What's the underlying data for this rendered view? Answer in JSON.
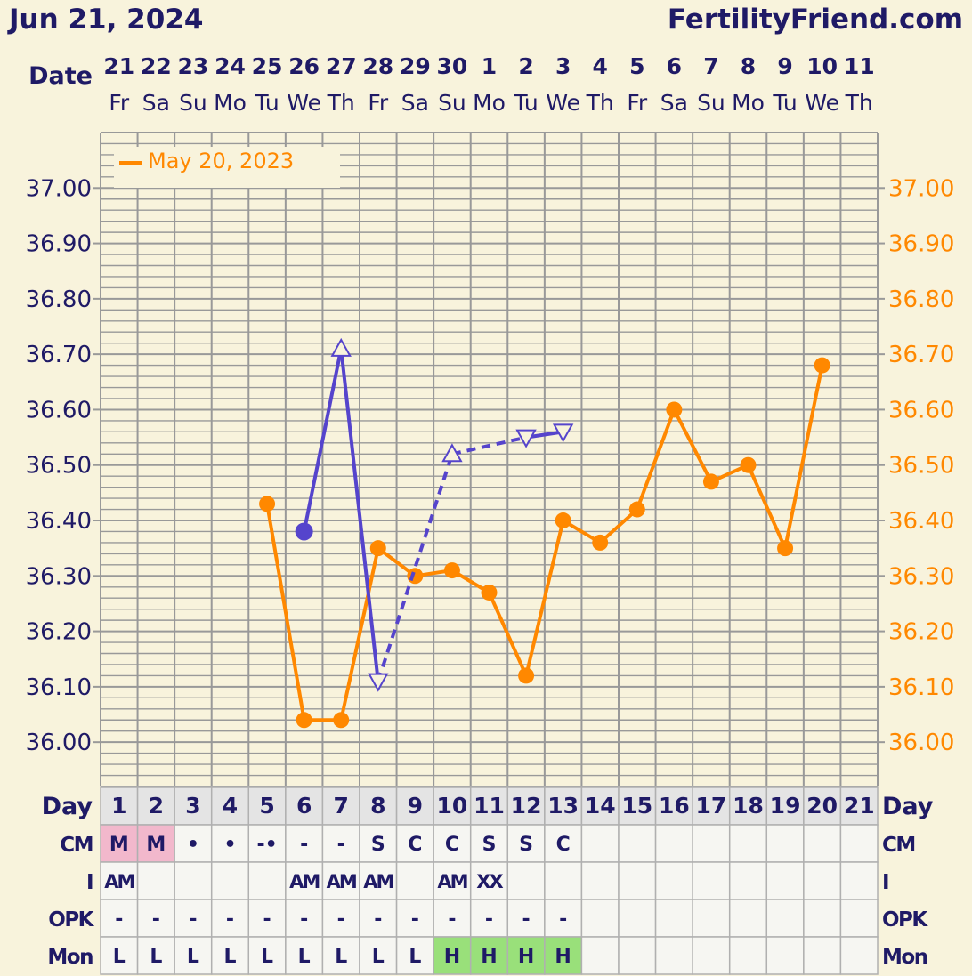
{
  "header": {
    "date": "Jun 21, 2024",
    "site": "FertilityFriend.com"
  },
  "date_label": "Date",
  "dates": [
    "21",
    "22",
    "23",
    "24",
    "25",
    "26",
    "27",
    "28",
    "29",
    "30",
    "1",
    "2",
    "3",
    "4",
    "5",
    "6",
    "7",
    "8",
    "9",
    "10",
    "11"
  ],
  "weekdays": [
    "Fr",
    "Sa",
    "Su",
    "Mo",
    "Tu",
    "We",
    "Th",
    "Fr",
    "Sa",
    "Su",
    "Mo",
    "Tu",
    "We",
    "Th",
    "Fr",
    "Sa",
    "Su",
    "Mo",
    "Tu",
    "We",
    "Th"
  ],
  "colors": {
    "current": "#5544cc",
    "overlay": "#ff8800",
    "text": "#1f1a66",
    "grid": "#999999",
    "pink": "#f2b8cc",
    "green": "#99e07a"
  },
  "chart_data": {
    "type": "line",
    "ylim": [
      35.92,
      37.1
    ],
    "y_ticks": [
      "37.00",
      "36.90",
      "36.80",
      "36.70",
      "36.60",
      "36.50",
      "36.40",
      "36.30",
      "36.20",
      "36.10",
      "36.00"
    ],
    "y_tick_values": [
      37.0,
      36.9,
      36.8,
      36.7,
      36.6,
      36.5,
      36.4,
      36.3,
      36.2,
      36.1,
      36.0
    ],
    "x_days": [
      1,
      2,
      3,
      4,
      5,
      6,
      7,
      8,
      9,
      10,
      11,
      12,
      13,
      14,
      15,
      16,
      17,
      18,
      19,
      20,
      21
    ],
    "legend": {
      "label": "May 20, 2023",
      "placement": "top-left"
    },
    "series": [
      {
        "name": "",
        "role": "current",
        "color": "#5544cc",
        "points": [
          {
            "day": 6,
            "temp": 36.38,
            "marker": "dot"
          },
          {
            "day": 7,
            "temp": 36.71,
            "marker": "triangle-up"
          },
          {
            "day": 8,
            "temp": 36.11,
            "marker": "triangle-down"
          },
          {
            "day": 10,
            "temp": 36.52,
            "marker": "triangle-up"
          },
          {
            "day": 12,
            "temp": 36.55,
            "marker": "triangle-down"
          },
          {
            "day": 13,
            "temp": 36.56,
            "marker": "triangle-down"
          }
        ],
        "segments": [
          {
            "from": 6,
            "to": 7,
            "style": "solid"
          },
          {
            "from": 7,
            "to": 8,
            "style": "solid"
          },
          {
            "from": 8,
            "to": 10,
            "style": "dashed"
          },
          {
            "from": 10,
            "to": 12,
            "style": "dashed"
          },
          {
            "from": 12,
            "to": 13,
            "style": "solid"
          }
        ]
      },
      {
        "name": "May 20, 2023",
        "role": "overlay",
        "color": "#ff8800",
        "points": [
          {
            "day": 5,
            "temp": 36.43
          },
          {
            "day": 6,
            "temp": 36.04
          },
          {
            "day": 7,
            "temp": 36.04
          },
          {
            "day": 8,
            "temp": 36.35
          },
          {
            "day": 9,
            "temp": 36.3
          },
          {
            "day": 10,
            "temp": 36.31
          },
          {
            "day": 11,
            "temp": 36.27
          },
          {
            "day": 12,
            "temp": 36.12
          },
          {
            "day": 13,
            "temp": 36.4
          },
          {
            "day": 14,
            "temp": 36.36
          },
          {
            "day": 15,
            "temp": 36.42
          },
          {
            "day": 16,
            "temp": 36.6
          },
          {
            "day": 17,
            "temp": 36.47
          },
          {
            "day": 18,
            "temp": 36.5
          },
          {
            "day": 19,
            "temp": 36.35
          },
          {
            "day": 20,
            "temp": 36.68
          }
        ]
      }
    ]
  },
  "table": {
    "rows": [
      {
        "label": "Day",
        "right_label": "Day",
        "kind": "day",
        "cells": [
          "1",
          "2",
          "3",
          "4",
          "5",
          "6",
          "7",
          "8",
          "9",
          "10",
          "11",
          "12",
          "13",
          "14",
          "15",
          "16",
          "17",
          "18",
          "19",
          "20",
          "21"
        ],
        "fills": []
      },
      {
        "label": "CM",
        "right_label": "CM",
        "kind": "cm",
        "cells": [
          "M",
          "M",
          "•",
          "•",
          "-•",
          "-",
          "-",
          "S",
          "C",
          "C",
          "S",
          "S",
          "C",
          "",
          "",
          "",
          "",
          "",
          "",
          "",
          ""
        ],
        "fills": [
          "pink",
          "pink",
          "",
          "",
          "",
          "",
          "",
          "",
          "",
          "",
          "",
          "",
          "",
          "",
          "",
          "",
          "",
          "",
          "",
          "",
          ""
        ]
      },
      {
        "label": "I",
        "right_label": "I",
        "kind": "i",
        "cells": [
          "AM",
          "",
          "",
          "",
          "",
          "AM",
          "AM",
          "AM",
          "",
          "AM",
          "XX",
          "",
          "",
          "",
          "",
          "",
          "",
          "",
          "",
          "",
          ""
        ],
        "fills": []
      },
      {
        "label": "OPK",
        "right_label": "OPK",
        "kind": "opk",
        "cells": [
          "-",
          "-",
          "-",
          "-",
          "-",
          "-",
          "-",
          "-",
          "-",
          "-",
          "-",
          "-",
          "-",
          "",
          "",
          "",
          "",
          "",
          "",
          "",
          ""
        ],
        "fills": []
      },
      {
        "label": "Mon",
        "right_label": "Mon",
        "kind": "mon",
        "cells": [
          "L",
          "L",
          "L",
          "L",
          "L",
          "L",
          "L",
          "L",
          "L",
          "H",
          "H",
          "H",
          "H",
          "",
          "",
          "",
          "",
          "",
          "",
          "",
          ""
        ],
        "fills": [
          "",
          "",
          "",
          "",
          "",
          "",
          "",
          "",
          "",
          "green",
          "green",
          "green",
          "green",
          "",
          "",
          "",
          "",
          "",
          "",
          "",
          ""
        ]
      }
    ]
  }
}
